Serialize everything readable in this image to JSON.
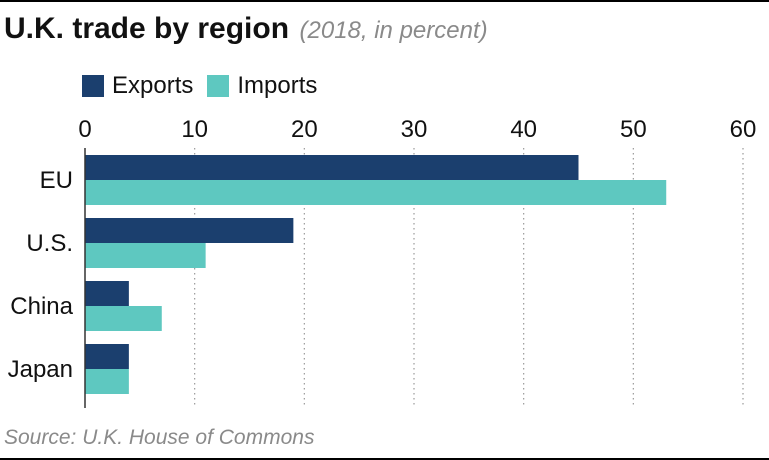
{
  "title": "U.K. trade by region",
  "subtitle": "(2018, in percent)",
  "source": "Source: U.K. House of Commons",
  "legend": {
    "exports": "Exports",
    "imports": "Imports"
  },
  "colors": {
    "exports": "#1b3f6e",
    "imports": "#5ec8c0",
    "grid": "#9a9a9a",
    "axis": "#333333"
  },
  "chart_data": {
    "type": "bar",
    "orientation": "horizontal",
    "categories": [
      "EU",
      "U.S.",
      "China",
      "Japan"
    ],
    "series": [
      {
        "name": "Exports",
        "values": [
          45,
          19,
          4,
          4
        ]
      },
      {
        "name": "Imports",
        "values": [
          53,
          11,
          7,
          4
        ]
      }
    ],
    "xlim": [
      0,
      60
    ],
    "xticks": [
      "0",
      "10",
      "20",
      "30",
      "40",
      "50",
      "60"
    ],
    "grid": true,
    "legend_position": "top-left"
  }
}
